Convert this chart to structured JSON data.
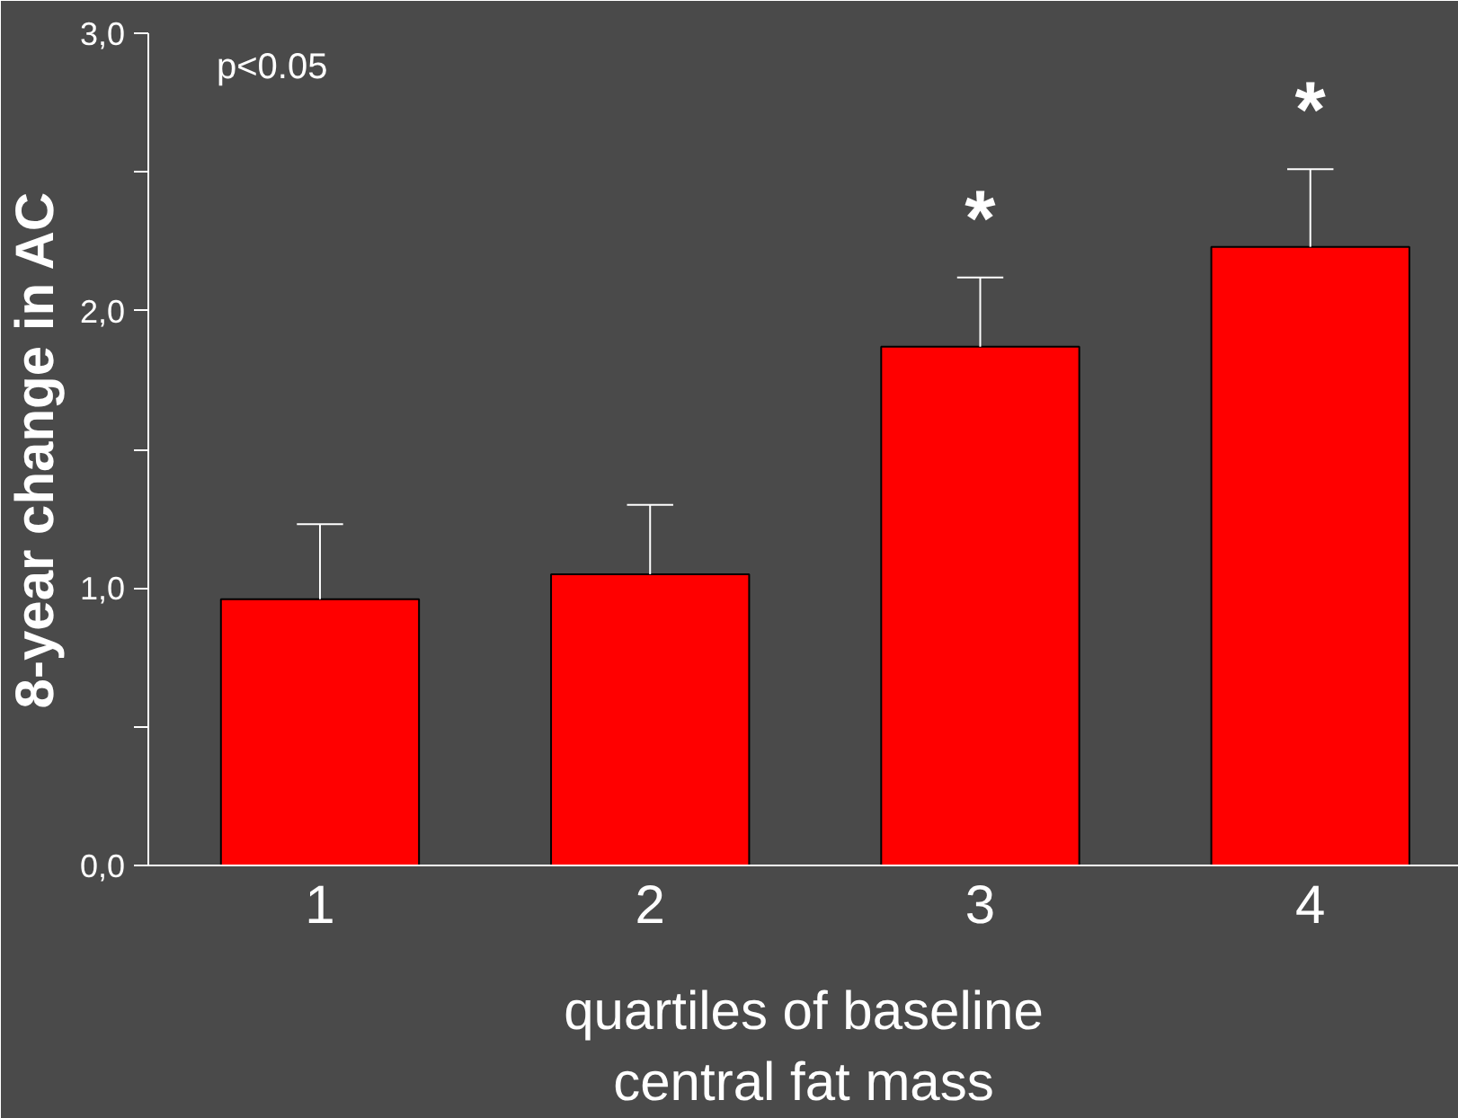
{
  "chart_data": {
    "type": "bar",
    "ylabel": "8-year change in AC",
    "xlabel": "quartiles of baseline\ncentral fat mass",
    "categories": [
      "1",
      "2",
      "3",
      "4"
    ],
    "values": [
      0.96,
      1.05,
      1.87,
      2.23
    ],
    "errors": [
      [
        0.96,
        1.23
      ],
      [
        1.05,
        1.3
      ],
      [
        1.87,
        2.12
      ],
      [
        2.23,
        2.51
      ]
    ],
    "color": "#ff0000",
    "ylim": [
      0,
      3.0
    ],
    "yticks": [
      {
        "value": 0,
        "label": "0,0"
      },
      {
        "value": 0.5,
        "label": null
      },
      {
        "value": 1,
        "label": "1,0"
      },
      {
        "value": 1.5,
        "label": null
      },
      {
        "value": 2,
        "label": "2,0"
      },
      {
        "value": 2.5,
        "label": null
      },
      {
        "value": 3,
        "label": "3,0"
      }
    ],
    "annotations": [
      "p<0.05",
      {
        "text": "*",
        "x": "3",
        "y": 2.12
      },
      {
        "text": "*",
        "x": "4",
        "y": 2.51
      }
    ],
    "grid": false
  }
}
